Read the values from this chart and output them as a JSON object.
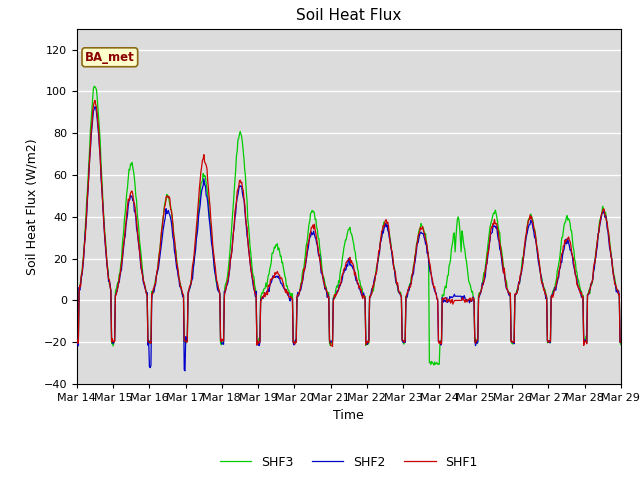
{
  "title": "Soil Heat Flux",
  "xlabel": "Time",
  "ylabel": "Soil Heat Flux (W/m2)",
  "ylim": [
    -40,
    130
  ],
  "yticks": [
    -40,
    -20,
    0,
    20,
    40,
    60,
    80,
    100,
    120
  ],
  "background_color": "#dcdcdc",
  "line_colors": {
    "SHF1": "#cc0000",
    "SHF2": "#0000cc",
    "SHF3": "#00cc00"
  },
  "legend_label": "BA_met",
  "n_days": 15,
  "points_per_day": 48,
  "xtick_labels": [
    "Mar 14",
    "Mar 15",
    "Mar 16",
    "Mar 17",
    "Mar 18",
    "Mar 19",
    "Mar 20",
    "Mar 21",
    "Mar 22",
    "Mar 23",
    "Mar 24",
    "Mar 25",
    "Mar 26",
    "Mar 27",
    "Mar 28",
    "Mar 29"
  ],
  "day_peaks_shf1": [
    95,
    52,
    50,
    68,
    57,
    13,
    35,
    20,
    38,
    35,
    0,
    38,
    40,
    30,
    43
  ],
  "day_peaks_shf2": [
    93,
    50,
    43,
    55,
    55,
    12,
    33,
    18,
    36,
    33,
    2,
    36,
    38,
    28,
    42
  ],
  "day_peaks_shf3": [
    103,
    65,
    50,
    60,
    80,
    26,
    43,
    34,
    37,
    36,
    40,
    43,
    40,
    40,
    44
  ],
  "night_val": -20,
  "night_val_shf2_day3": -32
}
